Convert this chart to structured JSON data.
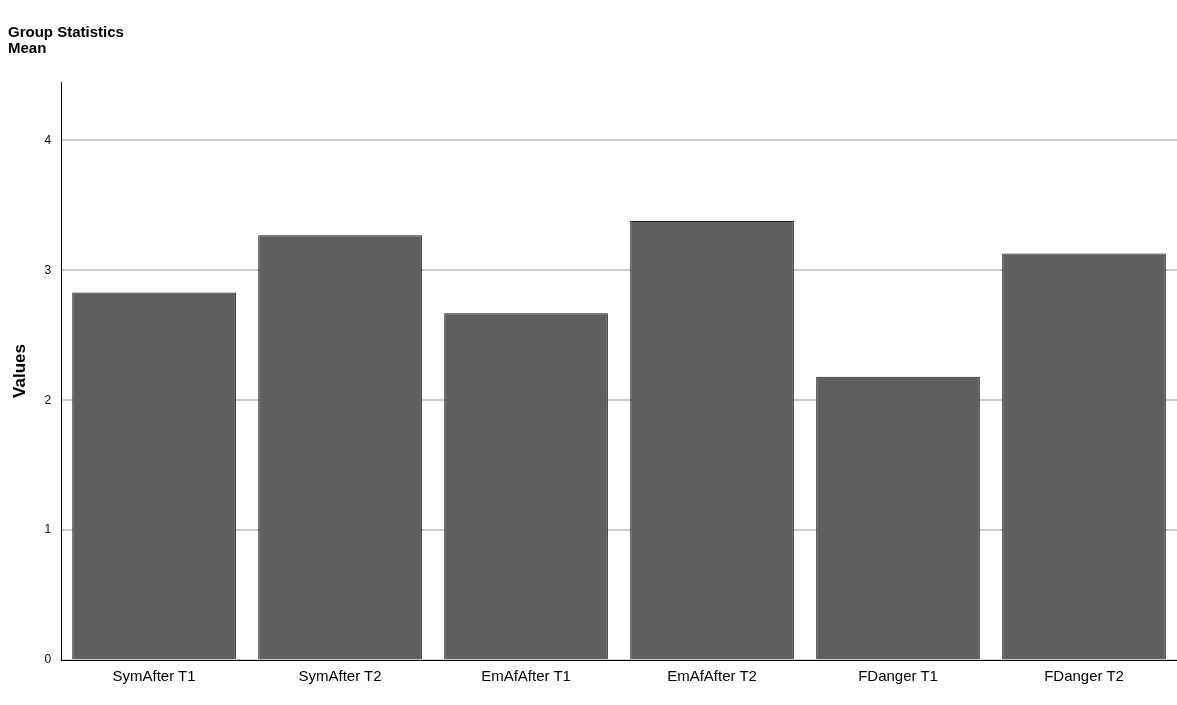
{
  "chart_data": {
    "type": "bar",
    "title": "Group Statistics",
    "subtitle": "Mean",
    "ylabel": "Values",
    "categories": [
      "SymAfter T1",
      "SymAfter T2",
      "EmAfAfter T1",
      "EmAfAfter T2",
      "FDanger T1",
      "FDanger T2"
    ],
    "values": [
      2.83,
      3.27,
      2.67,
      3.38,
      2.18,
      3.13
    ],
    "color": "#5f5f5f",
    "ylim": [
      0,
      4.45
    ],
    "yticks": [
      0,
      1,
      2,
      3,
      4
    ],
    "grid": "y",
    "legend": false
  }
}
